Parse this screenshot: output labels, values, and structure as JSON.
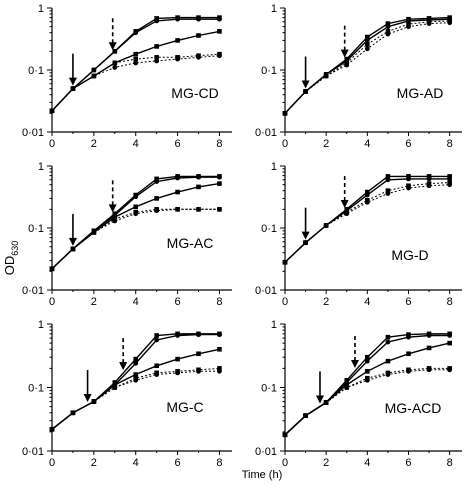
{
  "figure": {
    "ylabel_main": "OD",
    "ylabel_sub": "630",
    "xlabel": "Time (h)"
  },
  "chart_data": [
    {
      "type": "line",
      "label": "MG-CD",
      "yscale": "log",
      "xlim": [
        0,
        8.6
      ],
      "ylim": [
        0.01,
        1
      ],
      "xticks": [
        "0",
        "2",
        "4",
        "6",
        "8"
      ],
      "yticks": [
        "0·01",
        "0·1",
        "1"
      ],
      "arrows": [
        {
          "x": 1,
          "style": "solid"
        },
        {
          "x": 2.9,
          "style": "dashed"
        }
      ],
      "series": [
        {
          "marker": "square",
          "dash": false,
          "x": [
            0,
            1,
            2,
            3,
            4,
            5,
            6,
            7,
            8
          ],
          "y": [
            0.022,
            0.05,
            0.1,
            0.2,
            0.42,
            0.68,
            0.7,
            0.7,
            0.7
          ]
        },
        {
          "marker": "circle",
          "dash": false,
          "x": [
            0,
            1,
            2,
            3,
            4,
            5,
            6,
            7,
            8
          ],
          "y": [
            0.022,
            0.05,
            0.1,
            0.2,
            0.4,
            0.62,
            0.66,
            0.66,
            0.66
          ]
        },
        {
          "marker": "square",
          "dash": false,
          "x": [
            0,
            1,
            2,
            3,
            4,
            5,
            6,
            7,
            8
          ],
          "y": [
            0.022,
            0.05,
            0.08,
            0.13,
            0.18,
            0.24,
            0.3,
            0.36,
            0.42
          ]
        },
        {
          "marker": "square",
          "dash": true,
          "x": [
            0,
            1,
            2,
            3,
            4,
            5,
            6,
            7,
            8
          ],
          "y": [
            0.022,
            0.05,
            0.08,
            0.13,
            0.15,
            0.16,
            0.16,
            0.17,
            0.18
          ]
        },
        {
          "marker": "circle",
          "dash": true,
          "x": [
            0,
            1,
            2,
            3,
            4,
            5,
            6,
            7,
            8
          ],
          "y": [
            0.022,
            0.05,
            0.08,
            0.11,
            0.13,
            0.14,
            0.15,
            0.16,
            0.17
          ]
        }
      ]
    },
    {
      "type": "line",
      "label": "MG-AD",
      "yscale": "log",
      "xlim": [
        0,
        8.6
      ],
      "ylim": [
        0.01,
        1
      ],
      "xticks": [
        "0",
        "2",
        "4",
        "6",
        "8"
      ],
      "yticks": [
        "0·01",
        "0·1",
        "1"
      ],
      "arrows": [
        {
          "x": 1,
          "style": "solid"
        },
        {
          "x": 2.9,
          "style": "dashed"
        }
      ],
      "series": [
        {
          "marker": "square",
          "dash": false,
          "x": [
            0,
            1,
            2,
            3,
            4,
            5,
            6,
            7,
            8
          ],
          "y": [
            0.02,
            0.045,
            0.085,
            0.15,
            0.34,
            0.56,
            0.66,
            0.68,
            0.7
          ]
        },
        {
          "marker": "circle",
          "dash": false,
          "x": [
            0,
            1,
            2,
            3,
            4,
            5,
            6,
            7,
            8
          ],
          "y": [
            0.02,
            0.045,
            0.085,
            0.14,
            0.3,
            0.5,
            0.62,
            0.64,
            0.66
          ]
        },
        {
          "marker": "square",
          "dash": true,
          "x": [
            0,
            1,
            2,
            3,
            4,
            5,
            6,
            7,
            8
          ],
          "y": [
            0.02,
            0.045,
            0.08,
            0.13,
            0.26,
            0.42,
            0.55,
            0.6,
            0.62
          ]
        },
        {
          "marker": "circle",
          "dash": true,
          "x": [
            0,
            1,
            2,
            3,
            4,
            5,
            6,
            7,
            8
          ],
          "y": [
            0.02,
            0.045,
            0.08,
            0.12,
            0.22,
            0.38,
            0.5,
            0.56,
            0.58
          ]
        }
      ]
    },
    {
      "type": "line",
      "label": "MG-AC",
      "yscale": "log",
      "xlim": [
        0,
        8.6
      ],
      "ylim": [
        0.01,
        1
      ],
      "xticks": [
        "0",
        "2",
        "4",
        "6",
        "8"
      ],
      "yticks": [
        "0·01",
        "0·1",
        "1"
      ],
      "arrows": [
        {
          "x": 1,
          "style": "solid"
        },
        {
          "x": 2.9,
          "style": "dashed"
        }
      ],
      "series": [
        {
          "marker": "square",
          "dash": false,
          "x": [
            0,
            1,
            2,
            3,
            4,
            5,
            6,
            7,
            8
          ],
          "y": [
            0.022,
            0.046,
            0.09,
            0.17,
            0.34,
            0.62,
            0.68,
            0.68,
            0.68
          ]
        },
        {
          "marker": "circle",
          "dash": false,
          "x": [
            0,
            1,
            2,
            3,
            4,
            5,
            6,
            7,
            8
          ],
          "y": [
            0.022,
            0.046,
            0.09,
            0.16,
            0.32,
            0.56,
            0.64,
            0.66,
            0.66
          ]
        },
        {
          "marker": "square",
          "dash": false,
          "x": [
            0,
            1,
            2,
            3,
            4,
            5,
            6,
            7,
            8
          ],
          "y": [
            0.022,
            0.046,
            0.085,
            0.15,
            0.22,
            0.3,
            0.38,
            0.46,
            0.52
          ]
        },
        {
          "marker": "square",
          "dash": true,
          "x": [
            0,
            1,
            2,
            3,
            4,
            5,
            6,
            7,
            8
          ],
          "y": [
            0.022,
            0.046,
            0.085,
            0.14,
            0.18,
            0.2,
            0.2,
            0.2,
            0.2
          ]
        },
        {
          "marker": "circle",
          "dash": true,
          "x": [
            0,
            1,
            2,
            3,
            4,
            5,
            6,
            7,
            8
          ],
          "y": [
            0.022,
            0.046,
            0.085,
            0.13,
            0.17,
            0.19,
            0.2,
            0.2,
            0.2
          ]
        }
      ]
    },
    {
      "type": "line",
      "label": "MG-D",
      "yscale": "log",
      "xlim": [
        0,
        8.6
      ],
      "ylim": [
        0.01,
        1
      ],
      "xticks": [
        "0",
        "2",
        "4",
        "6",
        "8"
      ],
      "yticks": [
        "0·01",
        "0·1",
        "1"
      ],
      "arrows": [
        {
          "x": 1,
          "style": "solid"
        },
        {
          "x": 2.9,
          "style": "dashed"
        }
      ],
      "series": [
        {
          "marker": "square",
          "dash": false,
          "x": [
            0,
            1,
            2,
            3,
            4,
            5,
            6,
            7,
            8
          ],
          "y": [
            0.028,
            0.058,
            0.11,
            0.2,
            0.38,
            0.68,
            0.68,
            0.68,
            0.68
          ]
        },
        {
          "marker": "circle",
          "dash": false,
          "x": [
            0,
            1,
            2,
            3,
            4,
            5,
            6,
            7,
            8
          ],
          "y": [
            0.028,
            0.058,
            0.11,
            0.19,
            0.34,
            0.6,
            0.62,
            0.62,
            0.62
          ]
        },
        {
          "marker": "square",
          "dash": true,
          "x": [
            0,
            1,
            2,
            3,
            4,
            5,
            6,
            7,
            8
          ],
          "y": [
            0.028,
            0.058,
            0.11,
            0.18,
            0.28,
            0.4,
            0.48,
            0.52,
            0.54
          ]
        },
        {
          "marker": "circle",
          "dash": true,
          "x": [
            0,
            1,
            2,
            3,
            4,
            5,
            6,
            7,
            8
          ],
          "y": [
            0.028,
            0.058,
            0.11,
            0.17,
            0.26,
            0.36,
            0.44,
            0.48,
            0.5
          ]
        }
      ]
    },
    {
      "type": "line",
      "label": "MG-C",
      "yscale": "log",
      "xlim": [
        0,
        8.6
      ],
      "ylim": [
        0.01,
        1
      ],
      "xticks": [
        "0",
        "2",
        "4",
        "6",
        "8"
      ],
      "yticks": [
        "0·01",
        "0·1",
        "1"
      ],
      "arrows": [
        {
          "x": 1.7,
          "style": "solid"
        },
        {
          "x": 3.4,
          "style": "dashed"
        }
      ],
      "series": [
        {
          "marker": "square",
          "dash": false,
          "x": [
            0,
            1,
            2,
            3,
            4,
            5,
            6,
            7,
            8
          ],
          "y": [
            0.022,
            0.04,
            0.06,
            0.12,
            0.28,
            0.66,
            0.7,
            0.7,
            0.7
          ]
        },
        {
          "marker": "circle",
          "dash": false,
          "x": [
            0,
            1,
            2,
            3,
            4,
            5,
            6,
            7,
            8
          ],
          "y": [
            0.022,
            0.04,
            0.06,
            0.11,
            0.24,
            0.56,
            0.66,
            0.68,
            0.68
          ]
        },
        {
          "marker": "square",
          "dash": false,
          "x": [
            0,
            1,
            2,
            3,
            4,
            5,
            6,
            7,
            8
          ],
          "y": [
            0.022,
            0.04,
            0.06,
            0.11,
            0.16,
            0.22,
            0.28,
            0.34,
            0.4
          ]
        },
        {
          "marker": "square",
          "dash": true,
          "x": [
            0,
            1,
            2,
            3,
            4,
            5,
            6,
            7,
            8
          ],
          "y": [
            0.022,
            0.04,
            0.06,
            0.1,
            0.14,
            0.17,
            0.18,
            0.19,
            0.2
          ]
        },
        {
          "marker": "circle",
          "dash": true,
          "x": [
            0,
            1,
            2,
            3,
            4,
            5,
            6,
            7,
            8
          ],
          "y": [
            0.022,
            0.04,
            0.06,
            0.1,
            0.13,
            0.16,
            0.17,
            0.18,
            0.18
          ]
        }
      ]
    },
    {
      "type": "line",
      "label": "MG-ACD",
      "yscale": "log",
      "xlim": [
        0,
        8.6
      ],
      "ylim": [
        0.01,
        1
      ],
      "xticks": [
        "0",
        "2",
        "4",
        "6",
        "8"
      ],
      "yticks": [
        "0·01",
        "0·1",
        "1"
      ],
      "arrows": [
        {
          "x": 1.7,
          "style": "solid"
        },
        {
          "x": 3.4,
          "style": "dashed"
        }
      ],
      "series": [
        {
          "marker": "square",
          "dash": false,
          "x": [
            0,
            1,
            2,
            3,
            4,
            5,
            6,
            7,
            8
          ],
          "y": [
            0.018,
            0.036,
            0.058,
            0.13,
            0.3,
            0.62,
            0.68,
            0.7,
            0.7
          ]
        },
        {
          "marker": "circle",
          "dash": false,
          "x": [
            0,
            1,
            2,
            3,
            4,
            5,
            6,
            7,
            8
          ],
          "y": [
            0.018,
            0.036,
            0.058,
            0.12,
            0.26,
            0.52,
            0.62,
            0.66,
            0.66
          ]
        },
        {
          "marker": "square",
          "dash": false,
          "x": [
            0,
            1,
            2,
            3,
            4,
            5,
            6,
            7,
            8
          ],
          "y": [
            0.018,
            0.036,
            0.058,
            0.11,
            0.18,
            0.26,
            0.34,
            0.42,
            0.5
          ]
        },
        {
          "marker": "square",
          "dash": true,
          "x": [
            0,
            1,
            2,
            3,
            4,
            5,
            6,
            7,
            8
          ],
          "y": [
            0.018,
            0.036,
            0.058,
            0.1,
            0.14,
            0.17,
            0.19,
            0.2,
            0.2
          ]
        },
        {
          "marker": "circle",
          "dash": true,
          "x": [
            0,
            1,
            2,
            3,
            4,
            5,
            6,
            7,
            8
          ],
          "y": [
            0.018,
            0.036,
            0.058,
            0.1,
            0.13,
            0.16,
            0.18,
            0.19,
            0.19
          ]
        }
      ]
    }
  ]
}
